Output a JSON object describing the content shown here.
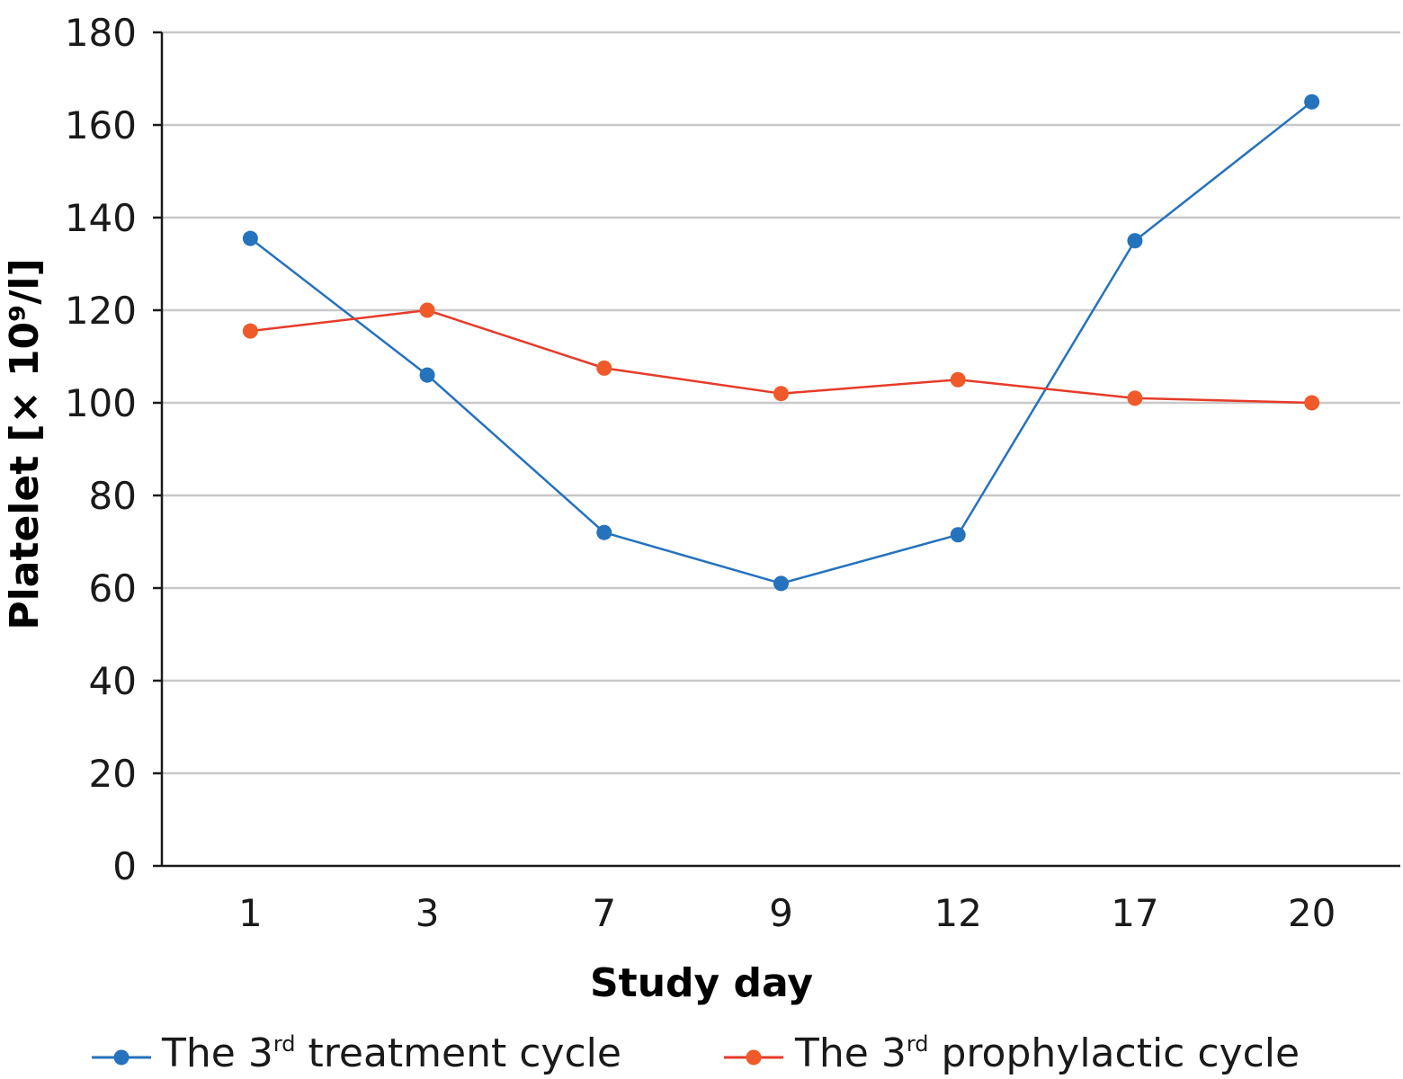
{
  "chart_data": {
    "type": "line",
    "xlabel": "Study day",
    "ylabel": "Platelet [× 10⁹/l]",
    "categories": [
      "1",
      "3",
      "7",
      "9",
      "12",
      "17",
      "20"
    ],
    "ylim": [
      0,
      180
    ],
    "yticks": [
      0,
      20,
      40,
      60,
      80,
      100,
      120,
      140,
      160,
      180
    ],
    "grid": "horizontal",
    "legend_position": "bottom",
    "series": [
      {
        "name_prefix": "The 3",
        "name_sup": "rd",
        "name_suffix": " treatment cycle",
        "color": "#2572bd",
        "values": [
          135.5,
          106,
          72,
          61,
          71.5,
          135,
          165
        ]
      },
      {
        "name_prefix": "The 3",
        "name_sup": "rd",
        "name_suffix": " prophylactic cycle",
        "color": "#e63b2a",
        "marker_color": "#f05a2a",
        "values": [
          115.5,
          120,
          107.5,
          102,
          105,
          101,
          100
        ]
      }
    ]
  }
}
